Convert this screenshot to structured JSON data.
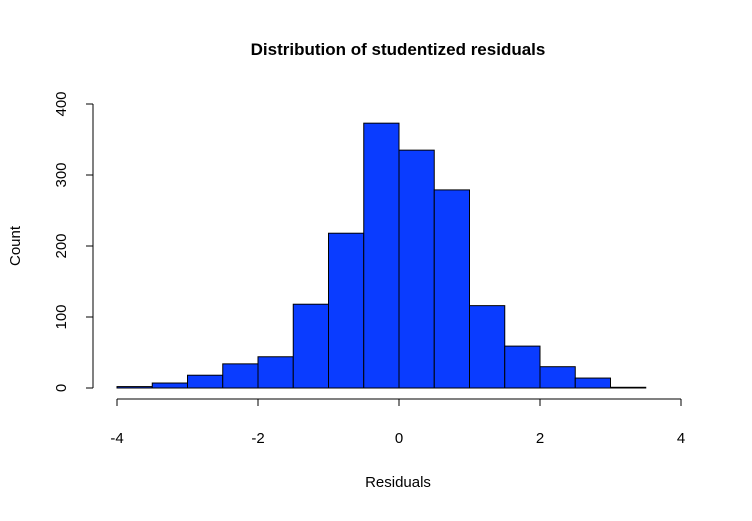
{
  "chart_data": {
    "type": "bar",
    "subtype": "histogram",
    "title": "Distribution of studentized residuals",
    "xlabel": "Residuals",
    "ylabel": "Count",
    "bin_edges": [
      -4,
      -3.5,
      -3,
      -2.5,
      -2,
      -1.5,
      -1,
      -0.5,
      0,
      0.5,
      1,
      1.5,
      2,
      2.5,
      3,
      3.5
    ],
    "values": [
      2,
      7,
      18,
      34,
      44,
      118,
      218,
      373,
      335,
      279,
      116,
      59,
      30,
      14,
      1
    ],
    "xlim": [
      -4,
      4
    ],
    "ylim": [
      0,
      400
    ],
    "xticks": [
      -4,
      -2,
      0,
      2,
      4
    ],
    "yticks": [
      0,
      100,
      200,
      300,
      400
    ],
    "bar_color": "#0A3CFF",
    "edge_color": "#000000",
    "grid": false
  }
}
